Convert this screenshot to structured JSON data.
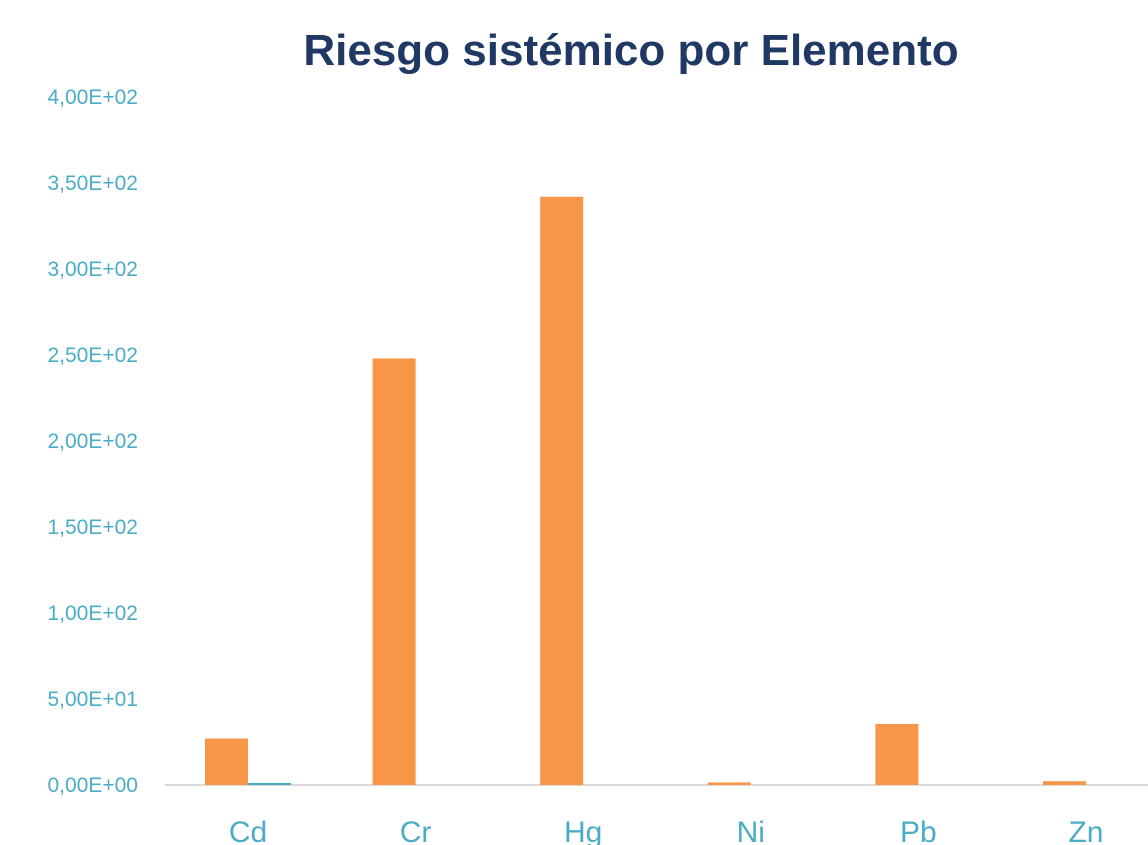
{
  "chart_data": {
    "type": "bar",
    "title": "Riesgo sistémico por Elemento",
    "xlabel": "",
    "ylabel": "",
    "categories": [
      "Cd",
      "Cr",
      "Hg",
      "Ni",
      "Pb",
      "Zn"
    ],
    "series": [
      {
        "values": [
          27,
          248,
          342,
          1.5,
          35.5,
          2.2
        ],
        "color": "#f79646"
      },
      {
        "values": [
          1.2,
          0,
          0,
          0,
          0,
          0
        ],
        "color": "#4bacc6"
      }
    ],
    "ylim": [
      0,
      400
    ],
    "yticks": [
      0,
      50,
      100,
      150,
      200,
      250,
      300,
      350,
      400
    ],
    "ytick_labels": [
      "0,00E+00",
      "5,00E+01",
      "1,00E+02",
      "1,50E+02",
      "2,00E+02",
      "2,50E+02",
      "3,00E+02",
      "3,50E+02",
      "4,00E+02"
    ],
    "grid": false,
    "legend": "none",
    "tick_color": "#4bacc6",
    "title_color": "#1f3864",
    "axis_color": "#d9d9d9"
  }
}
